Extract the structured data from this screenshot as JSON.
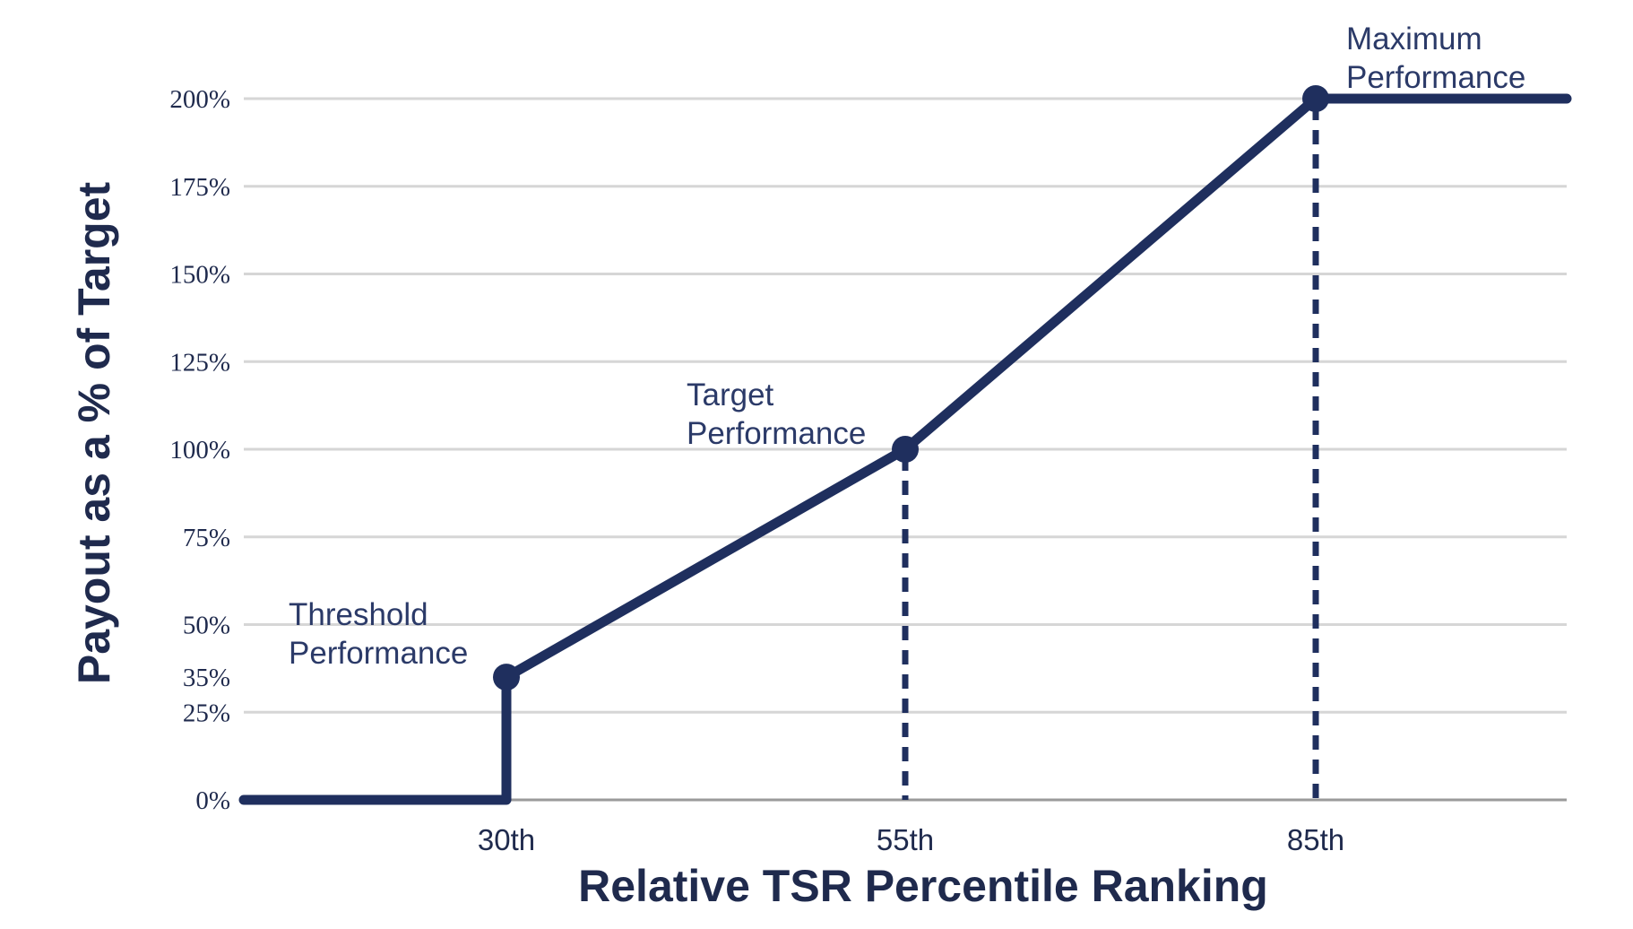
{
  "colors": {
    "line": "#1f2f5e",
    "grid": "#d6d6d6",
    "baseline": "#9a9a9a",
    "text": "#1f2a4d"
  },
  "chart_data": {
    "type": "line",
    "xlabel": "Relative TSR Percentile Ranking",
    "ylabel": "Payout as a % of Target",
    "x_ticks": [
      30,
      55,
      85
    ],
    "x_tick_labels": [
      "30th",
      "55th",
      "85th"
    ],
    "x_domain": [
      14.5,
      100
    ],
    "y_ticks": [
      0,
      25,
      35,
      50,
      75,
      100,
      125,
      150,
      175,
      200
    ],
    "y_tick_labels": [
      "0%",
      "25%",
      "35%",
      "50%",
      "75%",
      "100%",
      "125%",
      "150%",
      "175%",
      "200%"
    ],
    "ylim": [
      0,
      200
    ],
    "grid": true,
    "series": [
      {
        "points": [
          {
            "x": 14.5,
            "y": 0
          },
          {
            "x": 30,
            "y": 0
          },
          {
            "x": 30,
            "y": 35
          },
          {
            "x": 55,
            "y": 100
          },
          {
            "x": 85,
            "y": 200
          },
          {
            "x": 100,
            "y": 200
          }
        ]
      }
    ],
    "markers": [
      {
        "x": 30,
        "y": 35,
        "label_lines": [
          "Threshold",
          "Performance"
        ],
        "dashed_drop": false
      },
      {
        "x": 55,
        "y": 100,
        "label_lines": [
          "Target",
          "Performance"
        ],
        "dashed_drop": true
      },
      {
        "x": 85,
        "y": 200,
        "label_lines": [
          "Maximum",
          "Performance"
        ],
        "dashed_drop": true
      }
    ]
  }
}
